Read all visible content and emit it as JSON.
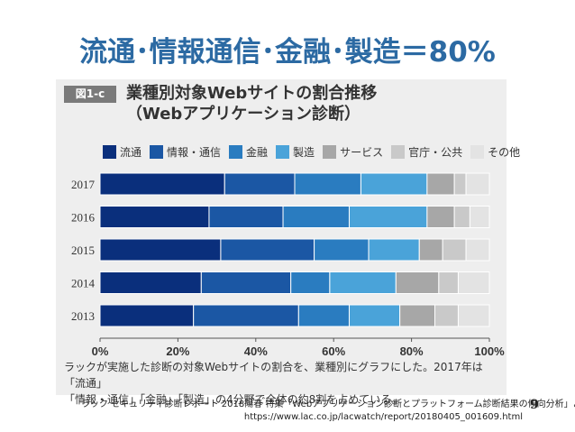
{
  "headline": "流通･情報通信･金融･製造＝80%",
  "figure": {
    "tag": "図1-c",
    "title_line1": "業種別対象Webサイトの割合推移",
    "title_line2": "（Webアプリケーション診断）",
    "caption_line1": "ラックが実施した診断の対象Webサイトの割合を、業種別にグラフにした。2017年は「流通」",
    "caption_line2": "「情報・通信」「金融」「製造」の4分野で全体の約8割を占めている。"
  },
  "source_line1": "ラック セキュリティ診断レポート 2018陽春 特集「Webアプリケーション診断とプラットフォーム診断結果の傾向分析」より",
  "source_line2": "https://www.lac.co.jp/lacwatch/report/20180405_001609.html",
  "page_number": "9",
  "chart_data": {
    "type": "bar",
    "orientation": "horizontal",
    "stacked": true,
    "categories": [
      "2017",
      "2016",
      "2015",
      "2014",
      "2013"
    ],
    "series": [
      {
        "name": "流通",
        "color": "#0a2f7c",
        "values": [
          32,
          28,
          31,
          26,
          24
        ]
      },
      {
        "name": "情報・通信",
        "color": "#1b57a4",
        "values": [
          18,
          19,
          24,
          23,
          27
        ]
      },
      {
        "name": "金融",
        "color": "#2a7cc0",
        "values": [
          17,
          17,
          14,
          10,
          13
        ]
      },
      {
        "name": "製造",
        "color": "#4aa3d9",
        "values": [
          17,
          20,
          13,
          17,
          13
        ]
      },
      {
        "name": "サービス",
        "color": "#a7a7a7",
        "values": [
          7,
          7,
          6,
          11,
          9
        ]
      },
      {
        "name": "官庁・公共",
        "color": "#c9c9c9",
        "values": [
          3,
          4,
          6,
          5,
          6
        ]
      },
      {
        "name": "その他",
        "color": "#e3e3e3",
        "values": [
          6,
          5,
          6,
          8,
          8
        ]
      }
    ],
    "xlim": [
      0,
      100
    ],
    "xticks": [
      "0%",
      "20%",
      "40%",
      "60%",
      "80%",
      "100%"
    ],
    "legend_position": "top",
    "grid": false
  }
}
